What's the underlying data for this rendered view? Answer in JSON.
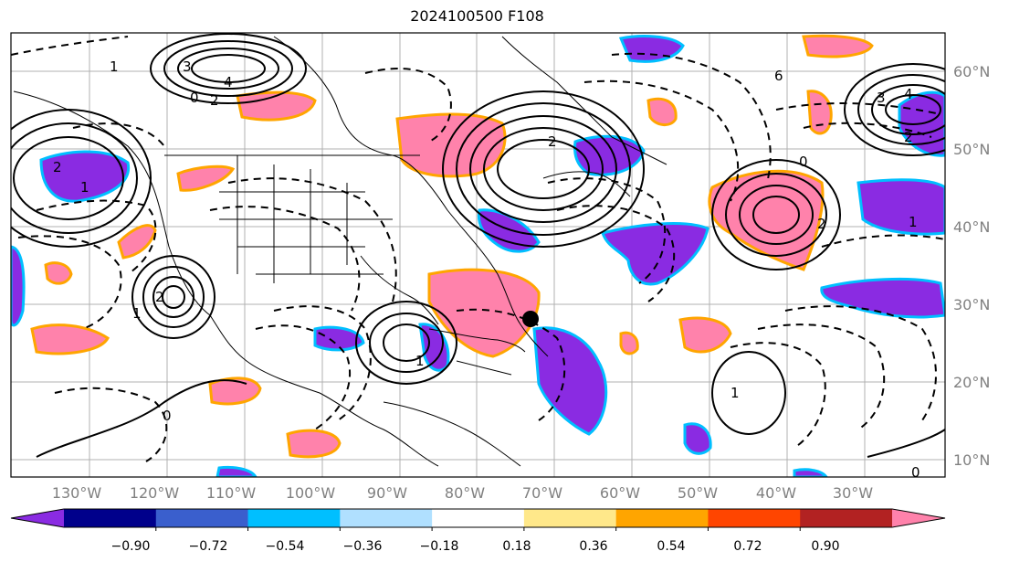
{
  "title": "2024100500 F108",
  "lon_ticks": [
    "130°W",
    "120°W",
    "110°W",
    "100°W",
    "90°W",
    "80°W",
    "70°W",
    "60°W",
    "50°W",
    "40°W",
    "30°W"
  ],
  "lat_ticks": [
    "60°N",
    "50°N",
    "40°N",
    "30°N",
    "20°N",
    "10°N"
  ],
  "colorbar": {
    "tick_labels": [
      "−0.90",
      "−0.72",
      "−0.54",
      "−0.36",
      "−0.18",
      "0.18",
      "0.36",
      "0.54",
      "0.72",
      "0.90"
    ],
    "colors": [
      "#8a2be2",
      "#00008b",
      "#3a5fcd",
      "#00bfff",
      "#b0e0ff",
      "#ffffff",
      "#ffe88a",
      "#ffa500",
      "#ff4500",
      "#b22222",
      "#ff82ab"
    ]
  },
  "contour_labels": [
    "4",
    "3",
    "2",
    "1",
    "0",
    "2",
    "1",
    "0",
    "1",
    "4",
    "3",
    "2",
    "6",
    "2",
    "1",
    "0",
    "2",
    "1",
    "0",
    "2",
    "1"
  ],
  "marker": "storm-position"
}
